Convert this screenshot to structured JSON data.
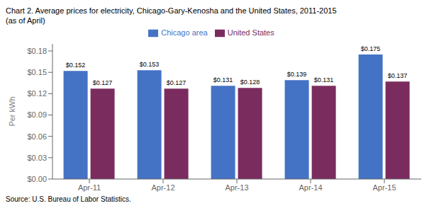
{
  "chart_data": {
    "type": "bar",
    "title": "Chart 2. Average prices for electricity, Chicago-Gary-Kenosha  and the United States, 2011-2015",
    "subtitle": "(as of April)",
    "y_label": "Per kWh",
    "categories": [
      "Apr-11",
      "Apr-12",
      "Apr-13",
      "Apr-14",
      "Apr-15"
    ],
    "series": [
      {
        "name": "Chicago area",
        "color": "#4472C4",
        "values": [
          0.152,
          0.153,
          0.131,
          0.139,
          0.175
        ],
        "value_labels": [
          "$0.152",
          "$0.153",
          "$0.131",
          "$0.139",
          "$0.175"
        ]
      },
      {
        "name": "United States",
        "color": "#7B2C5E",
        "values": [
          0.127,
          0.127,
          0.128,
          0.131,
          0.137
        ],
        "value_labels": [
          "$0.127",
          "$0.127",
          "$0.128",
          "$0.131",
          "$0.137"
        ]
      }
    ],
    "ylim": [
      0,
      0.19
    ],
    "yticks": [
      {
        "value": 0.0,
        "label": "$0.00"
      },
      {
        "value": 0.03,
        "label": "$0.03"
      },
      {
        "value": 0.06,
        "label": "$0.06"
      },
      {
        "value": 0.09,
        "label": "$0.09"
      },
      {
        "value": 0.12,
        "label": "$0.12"
      },
      {
        "value": 0.15,
        "label": "$0.15"
      },
      {
        "value": 0.18,
        "label": "$0.18"
      }
    ],
    "data_labels": true,
    "legend": "top",
    "grid": false,
    "annotations": [
      "Source: U.S. Bureau of Labor Statistics."
    ]
  }
}
